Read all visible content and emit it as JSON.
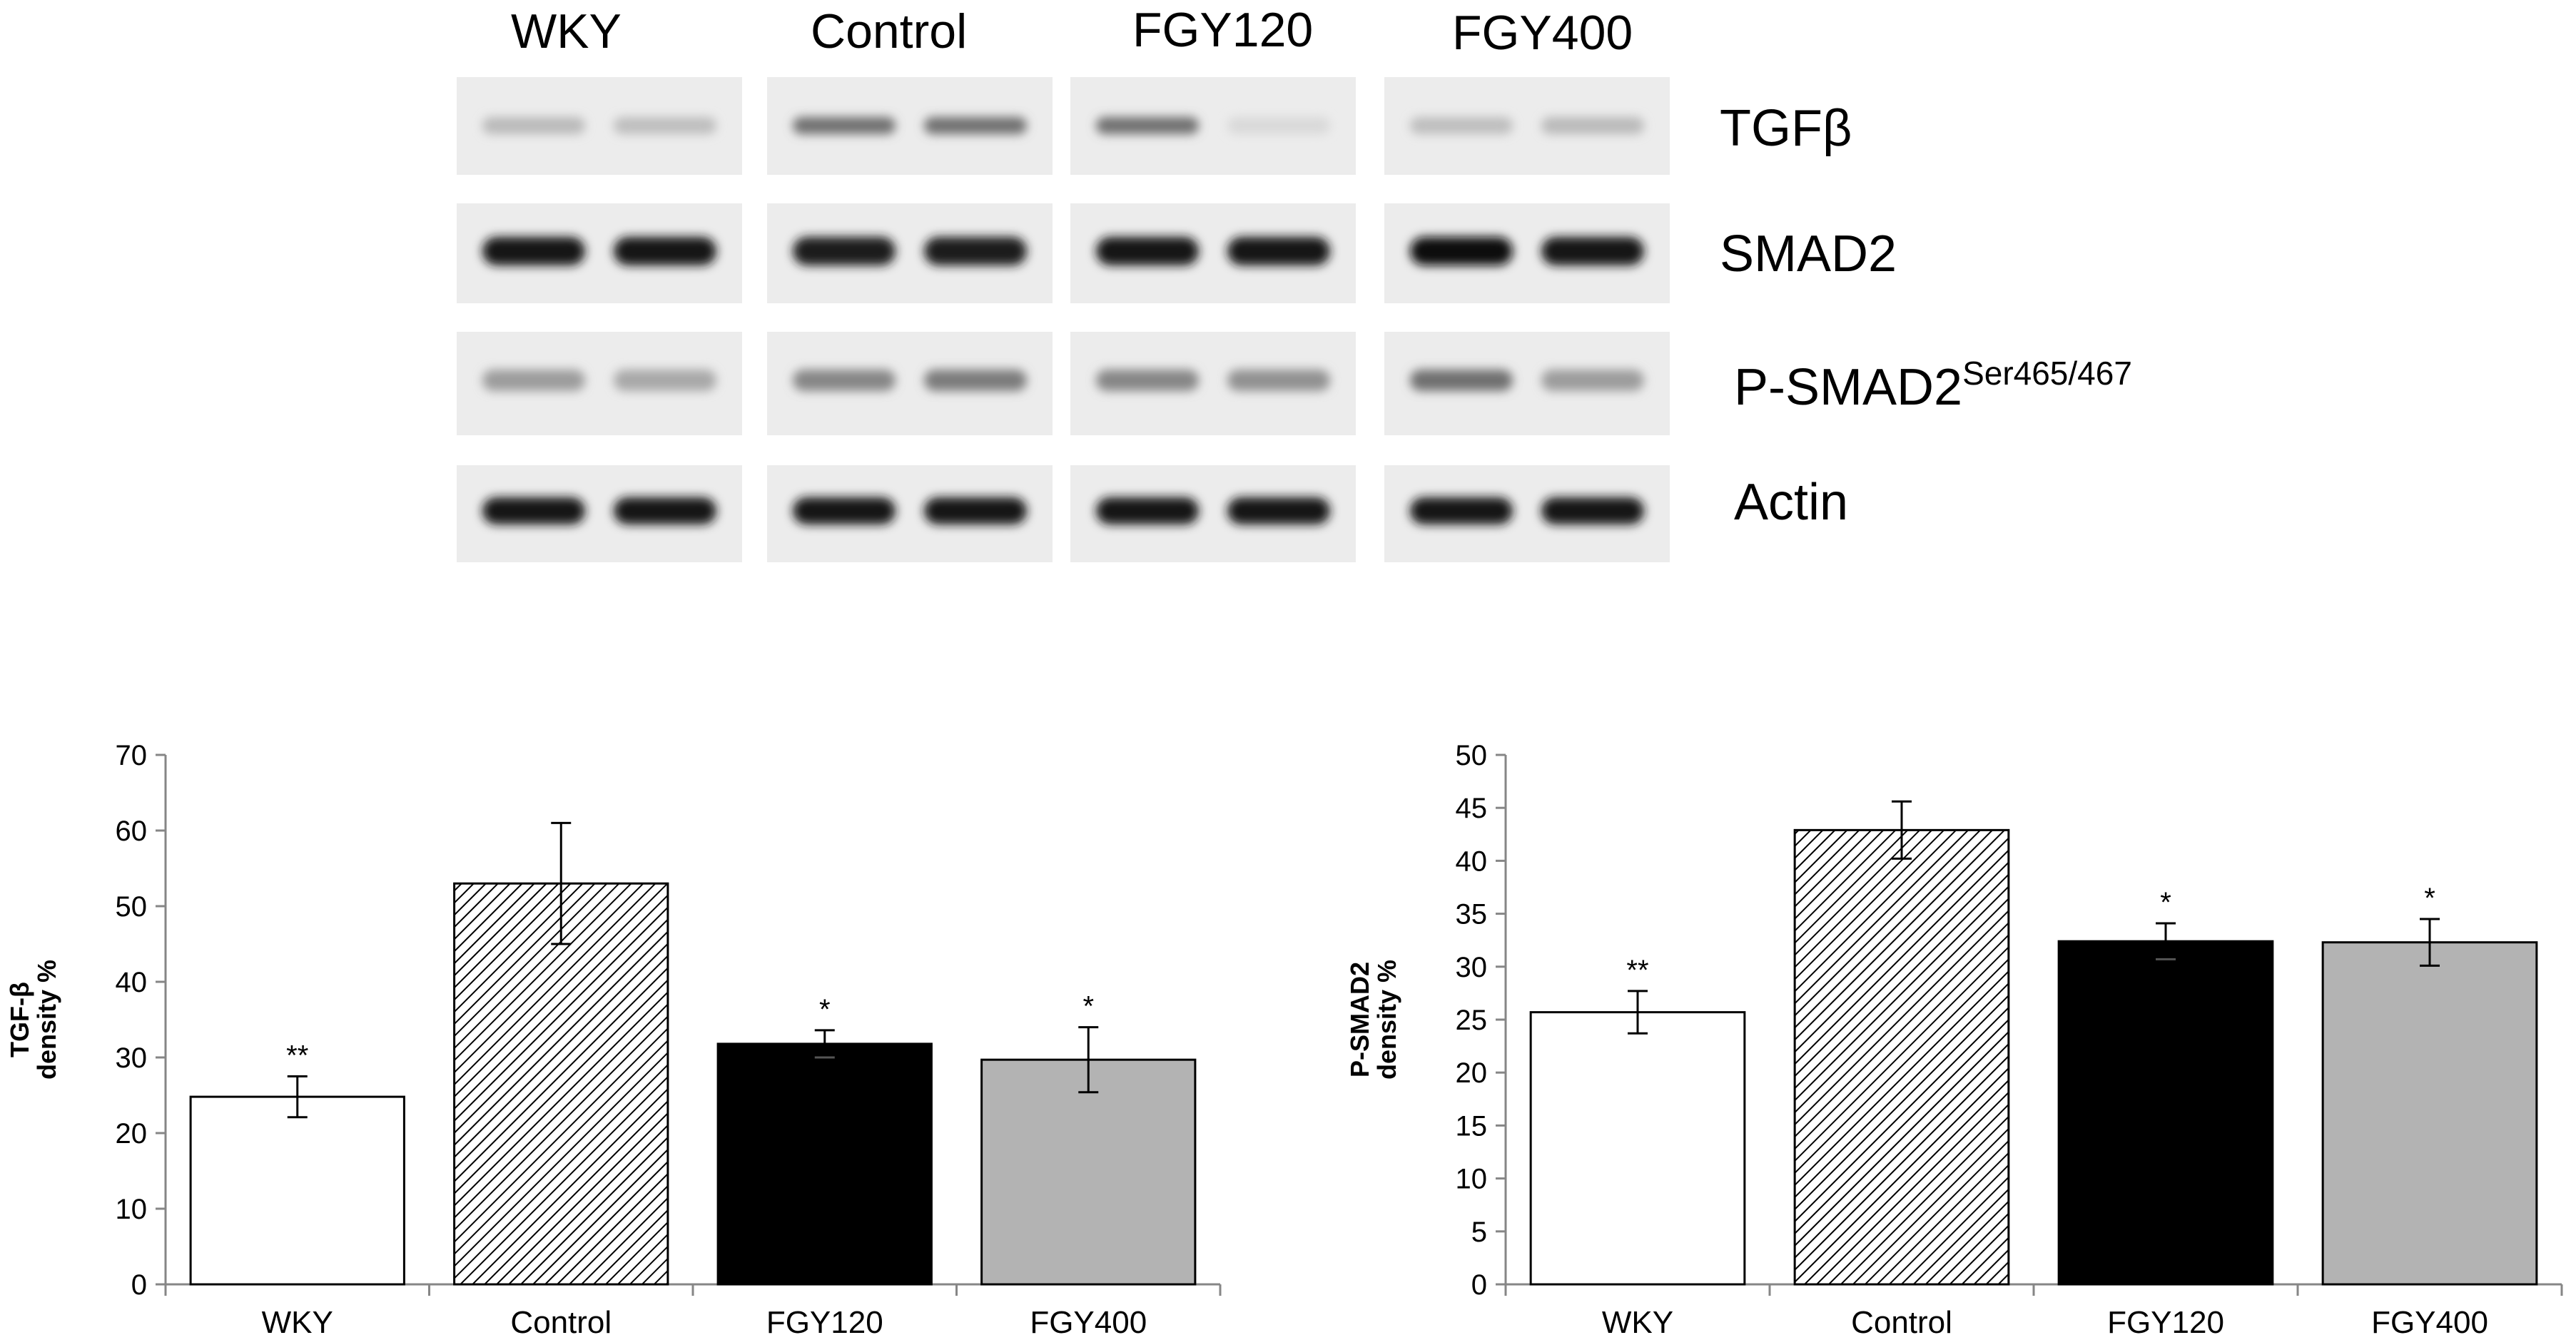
{
  "blot": {
    "lane_groups": [
      "WKY",
      "Control",
      "FGY120",
      "FGY400"
    ],
    "rows": [
      {
        "label": "TGFβ",
        "sup": ""
      },
      {
        "label": "SMAD2",
        "sup": ""
      },
      {
        "label": "P-SMAD2",
        "sup": "Ser465/467"
      },
      {
        "label": "Actin",
        "sup": ""
      }
    ],
    "band_intensity": [
      [
        [
          0.22,
          0.2
        ],
        [
          0.55,
          0.55
        ],
        [
          0.55,
          0.08
        ],
        [
          0.2,
          0.22
        ]
      ],
      [
        [
          0.95,
          0.95
        ],
        [
          0.92,
          0.92
        ],
        [
          0.95,
          0.95
        ],
        [
          0.97,
          0.95
        ]
      ],
      [
        [
          0.35,
          0.3
        ],
        [
          0.45,
          0.5
        ],
        [
          0.45,
          0.4
        ],
        [
          0.55,
          0.35
        ]
      ],
      [
        [
          0.95,
          0.95
        ],
        [
          0.95,
          0.95
        ],
        [
          0.95,
          0.95
        ],
        [
          0.95,
          0.95
        ]
      ]
    ]
  },
  "chart_data": [
    {
      "type": "bar",
      "categories": [
        "WKY",
        "Control",
        "FGY120",
        "FGY400"
      ],
      "values": [
        24.8,
        53.0,
        31.8,
        29.7
      ],
      "errors": [
        2.7,
        8.0,
        1.8,
        4.3
      ],
      "significance": [
        "**",
        "",
        "*",
        "*"
      ],
      "fills": [
        "white",
        "hatched",
        "#000000",
        "#b3b3b3"
      ],
      "ylabel": "TGF-β",
      "ylabel2": "density %",
      "ylim": [
        0,
        70
      ],
      "yticks": [
        0,
        10,
        20,
        30,
        40,
        50,
        60,
        70
      ]
    },
    {
      "type": "bar",
      "categories": [
        "WKY",
        "Control",
        "FGY120",
        "FGY400"
      ],
      "values": [
        25.7,
        42.9,
        32.4,
        32.3
      ],
      "errors": [
        2.0,
        2.7,
        1.7,
        2.2
      ],
      "significance": [
        "**",
        "",
        "*",
        "*"
      ],
      "fills": [
        "white",
        "hatched",
        "#000000",
        "#b3b3b3"
      ],
      "ylabel": "P-SMAD2",
      "ylabel2": "density %",
      "ylim": [
        0,
        50
      ],
      "yticks": [
        0,
        5,
        10,
        15,
        20,
        25,
        30,
        35,
        40,
        45,
        50
      ]
    }
  ]
}
